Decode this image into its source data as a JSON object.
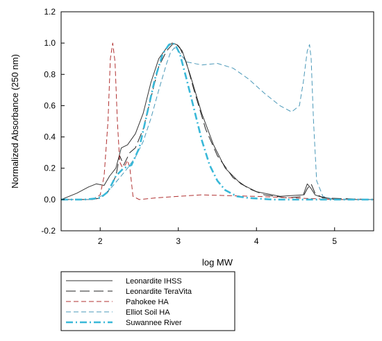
{
  "chart_data": {
    "type": "line",
    "xlabel": "log MW",
    "ylabel": "Normalized Absorbance (250 nm)",
    "xlim": [
      1.5,
      5.5
    ],
    "ylim": [
      -0.2,
      1.2
    ],
    "x_ticks": [
      2,
      3,
      4,
      5
    ],
    "x_tick_labels": [
      "2",
      "3",
      "4",
      "5"
    ],
    "y_ticks": [
      -0.2,
      0.0,
      0.2,
      0.4,
      0.6,
      0.8,
      1.0,
      1.2
    ],
    "y_tick_labels": [
      "-0.2",
      "0.0",
      "0.2",
      "0.4",
      "0.6",
      "0.8",
      "1.0",
      "1.2"
    ],
    "grid": false,
    "legend_position": "bottom-left, below plot",
    "series": [
      {
        "name": "Leonardite IHSS",
        "color": "#333333",
        "dash": "solid",
        "x": [
          1.5,
          1.7,
          1.85,
          1.95,
          2.05,
          2.12,
          2.2,
          2.27,
          2.35,
          2.45,
          2.55,
          2.65,
          2.75,
          2.85,
          2.92,
          2.98,
          3.05,
          3.15,
          3.3,
          3.45,
          3.6,
          3.8,
          4.0,
          4.3,
          4.6,
          4.65,
          4.7,
          4.75,
          4.8,
          4.9,
          5.0,
          5.5
        ],
        "y": [
          0.0,
          0.04,
          0.08,
          0.1,
          0.09,
          0.15,
          0.2,
          0.33,
          0.35,
          0.42,
          0.55,
          0.75,
          0.9,
          0.97,
          1.0,
          0.99,
          0.95,
          0.8,
          0.55,
          0.35,
          0.2,
          0.1,
          0.05,
          0.02,
          0.03,
          0.1,
          0.07,
          0.03,
          0.02,
          0.01,
          0.0,
          0.0
        ]
      },
      {
        "name": "Leonardite TeraVita",
        "color": "#222222",
        "dash": "long",
        "x": [
          1.5,
          1.9,
          2.0,
          2.1,
          2.2,
          2.25,
          2.3,
          2.38,
          2.45,
          2.55,
          2.65,
          2.75,
          2.85,
          2.92,
          2.97,
          3.02,
          3.1,
          3.2,
          3.35,
          3.5,
          3.7,
          3.9,
          4.1,
          4.4,
          4.6,
          4.65,
          4.7,
          4.75,
          4.85,
          5.5
        ],
        "y": [
          0.0,
          0.0,
          0.01,
          0.05,
          0.15,
          0.28,
          0.22,
          0.3,
          0.33,
          0.45,
          0.65,
          0.85,
          0.95,
          0.99,
          1.0,
          0.97,
          0.88,
          0.7,
          0.45,
          0.28,
          0.14,
          0.07,
          0.03,
          0.01,
          0.02,
          0.07,
          0.1,
          0.04,
          0.01,
          0.0
        ]
      },
      {
        "name": "Pahokee HA",
        "color": "#b03030",
        "dash": "dash",
        "x": [
          1.5,
          1.9,
          2.0,
          2.05,
          2.1,
          2.13,
          2.16,
          2.19,
          2.22,
          2.25,
          2.28,
          2.32,
          2.35,
          2.38,
          2.42,
          2.5,
          2.7,
          3.0,
          3.3,
          3.6,
          4.0,
          4.5,
          5.0,
          5.5
        ],
        "y": [
          0.0,
          0.0,
          0.03,
          0.15,
          0.5,
          0.9,
          1.0,
          0.88,
          0.5,
          0.24,
          0.21,
          0.22,
          0.25,
          0.2,
          0.02,
          0.0,
          0.01,
          0.02,
          0.03,
          0.025,
          0.02,
          0.01,
          0.0,
          0.0
        ]
      },
      {
        "name": "Elliot Soil HA",
        "color": "#4a98b8",
        "dash": "dash",
        "x": [
          1.5,
          1.9,
          2.05,
          2.15,
          2.25,
          2.35,
          2.45,
          2.55,
          2.65,
          2.75,
          2.85,
          2.9,
          2.95,
          3.0,
          3.1,
          3.3,
          3.5,
          3.7,
          3.9,
          4.1,
          4.3,
          4.45,
          4.55,
          4.6,
          4.65,
          4.68,
          4.7,
          4.73,
          4.77,
          4.85,
          5.0,
          5.5
        ],
        "y": [
          0.0,
          0.0,
          0.03,
          0.08,
          0.14,
          0.2,
          0.27,
          0.37,
          0.52,
          0.7,
          0.87,
          0.94,
          0.97,
          0.95,
          0.88,
          0.86,
          0.87,
          0.84,
          0.77,
          0.68,
          0.6,
          0.56,
          0.6,
          0.75,
          0.95,
          0.99,
          0.9,
          0.5,
          0.12,
          0.02,
          0.0,
          0.0
        ]
      },
      {
        "name": "Suwannee River",
        "color": "#39b8d8",
        "dash": "dashdot",
        "x": [
          1.5,
          1.8,
          2.0,
          2.1,
          2.2,
          2.3,
          2.4,
          2.5,
          2.6,
          2.7,
          2.8,
          2.88,
          2.93,
          2.97,
          3.02,
          3.1,
          3.2,
          3.3,
          3.4,
          3.5,
          3.6,
          3.75,
          3.9,
          4.2,
          5.0,
          5.5
        ],
        "y": [
          0.0,
          0.0,
          0.01,
          0.05,
          0.15,
          0.2,
          0.22,
          0.33,
          0.55,
          0.77,
          0.93,
          0.99,
          1.0,
          0.98,
          0.93,
          0.78,
          0.58,
          0.38,
          0.22,
          0.12,
          0.06,
          0.02,
          0.01,
          0.0,
          0.0,
          0.0
        ]
      }
    ]
  }
}
